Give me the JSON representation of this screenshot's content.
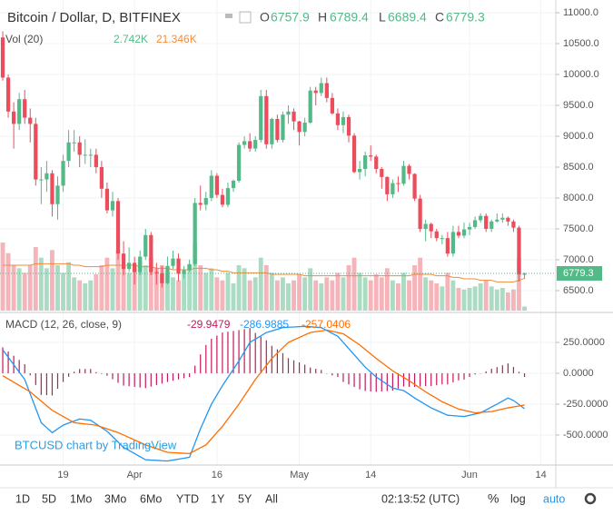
{
  "chart_data": {
    "type": "candlestick",
    "title": "Bitcoin / Dollar, D, BITFINEX",
    "ohlc_labels": [
      "O",
      "H",
      "L",
      "C"
    ],
    "open": [
      10600,
      9950,
      9400,
      9200,
      9600,
      9300,
      9200,
      8300,
      8300,
      8400,
      7900,
      8200,
      8600,
      8900,
      8900,
      8700,
      8700,
      8700,
      8500,
      8150,
      7800,
      7950,
      7100,
      6850,
      6950,
      6800,
      7050,
      7400,
      6800,
      6780,
      6620,
      6900,
      7020,
      6770,
      6830,
      6930,
      7920,
      7890,
      8000,
      8360,
      8050,
      7890,
      8160,
      8280,
      8860,
      8920,
      8800,
      8940,
      9650,
      8870,
      9280,
      8940,
      9350,
      9400,
      9240,
      9070,
      9220,
      9740,
      9700,
      9860,
      9620,
      9370,
      9180,
      9310,
      9010,
      8420,
      8470,
      8690,
      8670,
      8470,
      8340,
      8060,
      8240,
      8230,
      8520,
      8390,
      7990,
      7500,
      7580,
      7460,
      7350,
      7350,
      7100,
      7450,
      7390,
      7490,
      7530,
      7640,
      7710,
      7500,
      7620,
      7650,
      7680,
      7620,
      7520,
      6757.9
    ],
    "high": [
      10700,
      10000,
      9550,
      9700,
      9750,
      9450,
      9300,
      8500,
      8600,
      8450,
      8350,
      8700,
      9100,
      9100,
      9000,
      8950,
      8800,
      8800,
      8600,
      8250,
      8100,
      8000,
      7300,
      7200,
      7050,
      7150,
      7500,
      7450,
      6950,
      6900,
      7050,
      7150,
      7100,
      6900,
      7000,
      8000,
      8200,
      8100,
      8450,
      8400,
      8150,
      8250,
      8300,
      8900,
      9000,
      9050,
      9000,
      9750,
      9750,
      9300,
      9350,
      9400,
      9500,
      9450,
      9250,
      9300,
      9800,
      9800,
      9950,
      9950,
      9700,
      9450,
      9400,
      9350,
      9050,
      8600,
      8750,
      8850,
      8700,
      8500,
      8350,
      8300,
      8350,
      8600,
      8550,
      8400,
      8050,
      7650,
      7600,
      7500,
      7400,
      7450,
      7550,
      7550,
      7600,
      7600,
      7700,
      7750,
      7750,
      7650,
      7750,
      7750,
      7700,
      7650,
      7550,
      6789.4
    ],
    "low": [
      9900,
      9300,
      8800,
      9100,
      9200,
      8900,
      8200,
      7900,
      8100,
      7700,
      7650,
      8100,
      8500,
      8750,
      8500,
      8550,
      8500,
      8400,
      8000,
      7750,
      7700,
      7000,
      6750,
      6800,
      6600,
      6750,
      7000,
      6750,
      6600,
      6550,
      6600,
      6850,
      6650,
      6700,
      6800,
      6900,
      7800,
      7800,
      7950,
      8000,
      7850,
      7850,
      8100,
      8250,
      8800,
      8750,
      8750,
      8900,
      8800,
      8800,
      8900,
      8900,
      9200,
      9100,
      8850,
      9000,
      9200,
      9500,
      9650,
      9550,
      9350,
      9100,
      9050,
      8900,
      8400,
      8300,
      8350,
      8600,
      8400,
      8150,
      7950,
      8000,
      8100,
      8200,
      8300,
      7950,
      7450,
      7300,
      7350,
      7300,
      7250,
      7050,
      7050,
      7350,
      7350,
      7400,
      7500,
      7600,
      7450,
      7450,
      7600,
      7600,
      7550,
      7450,
      6650,
      6689.4
    ],
    "close": [
      9950,
      9400,
      9200,
      9600,
      9300,
      9200,
      8300,
      8300,
      8400,
      7900,
      8200,
      8600,
      8900,
      8900,
      8700,
      8700,
      8700,
      8500,
      8150,
      7800,
      7950,
      7100,
      6850,
      6950,
      6800,
      7050,
      7400,
      6800,
      6780,
      6620,
      6900,
      7020,
      6770,
      6830,
      6930,
      7920,
      7890,
      8000,
      8360,
      8050,
      7890,
      8160,
      8280,
      8860,
      8920,
      8800,
      8940,
      9650,
      8870,
      9280,
      8940,
      9350,
      9400,
      9240,
      9070,
      9220,
      9740,
      9700,
      9860,
      9620,
      9370,
      9180,
      9310,
      9010,
      8420,
      8470,
      8690,
      8670,
      8470,
      8340,
      8060,
      8240,
      8230,
      8520,
      8390,
      7990,
      7500,
      7580,
      7460,
      7350,
      7350,
      7100,
      7450,
      7390,
      7490,
      7530,
      7640,
      7710,
      7500,
      7620,
      7650,
      7680,
      7620,
      7520,
      6760,
      6779.3
    ],
    "up_color": "#53b987",
    "down_color": "#eb4d5c",
    "xlim": [
      -0.5,
      100.7
    ],
    "xticks": [
      {
        "value": 11,
        "label": "19"
      },
      {
        "value": 24,
        "label": "Apr"
      },
      {
        "value": 39,
        "label": "16"
      },
      {
        "value": 54,
        "label": "May"
      },
      {
        "value": 67,
        "label": "14"
      },
      {
        "value": 85,
        "label": "Jun"
      },
      {
        "value": 98,
        "label": "14"
      }
    ],
    "ylim": [
      6176,
      11206
    ],
    "yticks": [
      {
        "value": 6500,
        "label": "6500.0"
      },
      {
        "value": 7000,
        "label": "7000.0"
      },
      {
        "value": 7500,
        "label": "7500.0"
      },
      {
        "value": 8000,
        "label": "8000.0"
      },
      {
        "value": 8500,
        "label": "8500.0"
      },
      {
        "value": 9000,
        "label": "9000.0"
      },
      {
        "value": 9500,
        "label": "9500.0"
      },
      {
        "value": 10000,
        "label": "10000.0"
      },
      {
        "value": 10500,
        "label": "10500.0"
      },
      {
        "value": 11000,
        "label": "11000.0"
      }
    ],
    "volume": {
      "name": "Vol (20)",
      "ylim": [
        0,
        60
      ],
      "up_color": "#a9dcc3",
      "down_color": "#f5b3ba",
      "value_label": "2.742K",
      "values": [
        45,
        38,
        30,
        28,
        25,
        30,
        42,
        35,
        28,
        40,
        30,
        25,
        32,
        22,
        20,
        18,
        20,
        24,
        30,
        35,
        28,
        40,
        30,
        25,
        28,
        32,
        30,
        35,
        28,
        30,
        25,
        22,
        20,
        25,
        30,
        45,
        30,
        25,
        28,
        22,
        20,
        25,
        18,
        30,
        28,
        20,
        22,
        35,
        30,
        25,
        20,
        22,
        18,
        20,
        24,
        22,
        28,
        20,
        18,
        22,
        20,
        25,
        22,
        30,
        35,
        25,
        22,
        20,
        24,
        22,
        28,
        20,
        18,
        25,
        20,
        30,
        35,
        22,
        20,
        18,
        16,
        25,
        20,
        15,
        14,
        15,
        16,
        18,
        20,
        16,
        14,
        15,
        12,
        14,
        35,
        2.742
      ],
      "ma": {
        "color": "#f28c38",
        "value_label": "21.346K",
        "values": [
          30,
          30,
          30,
          30,
          30,
          30,
          31,
          31,
          31,
          31,
          31,
          31,
          31,
          30,
          30,
          29,
          29,
          29,
          29,
          30,
          30,
          30,
          30,
          30,
          30,
          29,
          29,
          29,
          28,
          28,
          28,
          27,
          27,
          27,
          27,
          28,
          28,
          28,
          27,
          27,
          26,
          26,
          25,
          25,
          25,
          25,
          25,
          25,
          25,
          24,
          24,
          24,
          24,
          24,
          24,
          23,
          23,
          23,
          23,
          23,
          23,
          23,
          23,
          23,
          23,
          23,
          23,
          23,
          23,
          23,
          23,
          23,
          23,
          23,
          23,
          24,
          24,
          24,
          24,
          23,
          23,
          23,
          22,
          22,
          21,
          21,
          21,
          20,
          20,
          20,
          19,
          19,
          19,
          19,
          20,
          21.346
        ]
      }
    },
    "macd": {
      "name": "MACD (12, 26, close, 9)",
      "ylim": [
        -743,
        478
      ],
      "yticks": [
        {
          "value": 250,
          "label": "250.0000"
        },
        {
          "value": 0,
          "label": "0.0000"
        },
        {
          "value": -250,
          "label": "-250.0000"
        },
        {
          "value": -500,
          "label": "-500.0000"
        }
      ],
      "histogram": {
        "color": "#c2185b",
        "values": [
          210,
          176,
          142,
          108,
          74,
          -17,
          -95,
          -175,
          -177,
          -180,
          -125,
          -70,
          -28,
          13,
          35,
          35,
          35,
          10,
          -5,
          -20,
          -48,
          -77,
          -100,
          -105,
          -110,
          -115,
          -120,
          -108,
          -95,
          -83,
          -70,
          -60,
          -50,
          -40,
          -30,
          62,
          153,
          230,
          280,
          305,
          330,
          337,
          343,
          350,
          358,
          367,
          327,
          296,
          267,
          223,
          194,
          163,
          123,
          105,
          88,
          70,
          47,
          36,
          27,
          -3,
          -17,
          -30,
          -70,
          -90,
          -110,
          -130,
          -143,
          -147,
          -150,
          -147,
          -143,
          -140,
          -123,
          -107,
          -110,
          -110,
          -107,
          -103,
          -103,
          -97,
          -90,
          -90,
          -73,
          -57,
          -50,
          -30,
          -10,
          -3,
          16,
          37,
          50,
          65,
          80,
          52,
          12,
          -29.9479
        ]
      },
      "macd": {
        "color": "#2196f3",
        "values": [
          190,
          130,
          70,
          10,
          -50,
          -167,
          -283,
          -400,
          -440,
          -480,
          -450,
          -420,
          -403,
          -387,
          -370,
          -375,
          -380,
          -410,
          -440,
          -470,
          -513,
          -557,
          -600,
          -625,
          -650,
          -675,
          -700,
          -703,
          -705,
          -708,
          -710,
          -703,
          -695,
          -688,
          -680,
          -565,
          -450,
          -350,
          -250,
          -175,
          -100,
          -33,
          33,
          100,
          175,
          250,
          277,
          303,
          330,
          343,
          357,
          370,
          373,
          375,
          378,
          380,
          377,
          373,
          370,
          347,
          323,
          300,
          250,
          200,
          150,
          100,
          50,
          10,
          -30,
          -60,
          -90,
          -120,
          -130,
          -140,
          -170,
          -200,
          -227,
          -253,
          -280,
          -300,
          -320,
          -340,
          -343,
          -347,
          -350,
          -340,
          -330,
          -320,
          -297,
          -273,
          -250,
          -225,
          -200,
          -220,
          -253,
          -286.9885
        ]
      },
      "signal": {
        "color": "#ff6d00",
        "values": [
          -20,
          -46,
          -72,
          -98,
          -124,
          -150,
          -188,
          -225,
          -263,
          -300,
          -325,
          -350,
          -375,
          -400,
          -405,
          -410,
          -415,
          -420,
          -435,
          -450,
          -465,
          -480,
          -500,
          -520,
          -540,
          -560,
          -580,
          -595,
          -610,
          -625,
          -640,
          -643,
          -645,
          -648,
          -650,
          -627,
          -603,
          -580,
          -530,
          -480,
          -430,
          -370,
          -310,
          -250,
          -183,
          -117,
          -50,
          7,
          63,
          120,
          163,
          207,
          250,
          270,
          290,
          310,
          330,
          337,
          343,
          350,
          340,
          330,
          320,
          290,
          260,
          230,
          193,
          157,
          120,
          87,
          53,
          20,
          -7,
          -33,
          -60,
          -90,
          -120,
          -150,
          -177,
          -203,
          -230,
          -250,
          -270,
          -290,
          -300,
          -310,
          -320,
          -317,
          -313,
          -310,
          -300,
          -290,
          -280,
          -272,
          -265,
          -257.0406
        ]
      }
    },
    "watermark": "BTCUSD chart by TradingView"
  },
  "toolbar": {
    "ranges": [
      "1D",
      "5D",
      "1Mo",
      "3Mo",
      "6Mo",
      "YTD",
      "1Y",
      "5Y",
      "All"
    ],
    "time": "02:13:52 (UTC)",
    "options": [
      "%",
      "log",
      "auto"
    ]
  }
}
